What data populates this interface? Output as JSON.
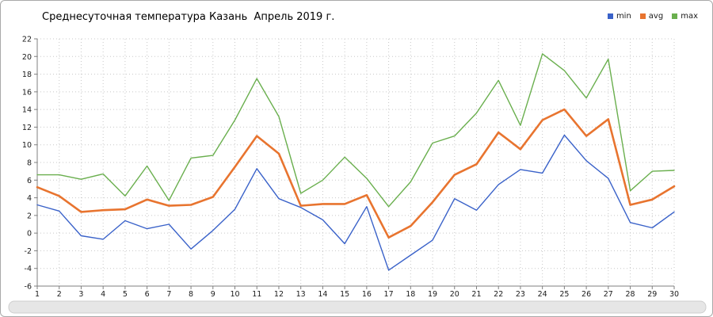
{
  "chart_data": {
    "type": "line",
    "title": "Среднесуточная температура Казань  Апрель 2019 г.",
    "x": [
      1,
      2,
      3,
      4,
      5,
      6,
      7,
      8,
      9,
      10,
      11,
      12,
      13,
      14,
      15,
      16,
      17,
      18,
      19,
      20,
      21,
      22,
      23,
      24,
      25,
      26,
      27,
      28,
      29,
      30
    ],
    "xlabel": "",
    "ylabel": "",
    "ylim": [
      -6,
      22
    ],
    "ytick_step": 2,
    "grid": "dotted",
    "legend_position": "top-right",
    "series": [
      {
        "name": "min",
        "color": "#3a62c9",
        "values": [
          3.2,
          2.5,
          -0.3,
          -0.7,
          1.4,
          0.5,
          1.0,
          -1.8,
          0.3,
          2.7,
          7.3,
          3.9,
          2.9,
          1.5,
          -1.2,
          3.0,
          -4.2,
          -2.5,
          -0.8,
          3.9,
          2.6,
          5.5,
          7.2,
          6.8,
          11.1,
          8.2,
          6.2,
          1.2,
          0.6,
          2.4
        ]
      },
      {
        "name": "avg",
        "color": "#e8742f",
        "values": [
          5.2,
          4.2,
          2.4,
          2.6,
          2.7,
          3.8,
          3.1,
          3.2,
          4.1,
          7.5,
          11.0,
          9.0,
          3.1,
          3.3,
          3.3,
          4.3,
          -0.5,
          0.8,
          3.5,
          6.6,
          7.8,
          11.4,
          9.5,
          12.8,
          14.0,
          11.0,
          12.9,
          3.2,
          3.8,
          5.3
        ]
      },
      {
        "name": "max",
        "color": "#6aaf4e",
        "values": [
          6.6,
          6.6,
          6.1,
          6.7,
          4.2,
          7.6,
          3.7,
          8.5,
          8.8,
          12.8,
          17.5,
          13.2,
          4.5,
          6.0,
          8.6,
          6.2,
          3.0,
          5.8,
          10.2,
          11.0,
          13.6,
          17.3,
          12.2,
          20.3,
          18.4,
          15.3,
          19.7,
          4.8,
          7.0,
          7.1
        ]
      }
    ],
    "colors": {
      "axis": "#7f7f7f",
      "grid": "#c8c8c8",
      "scrollbar": "#e6e6e6"
    }
  }
}
